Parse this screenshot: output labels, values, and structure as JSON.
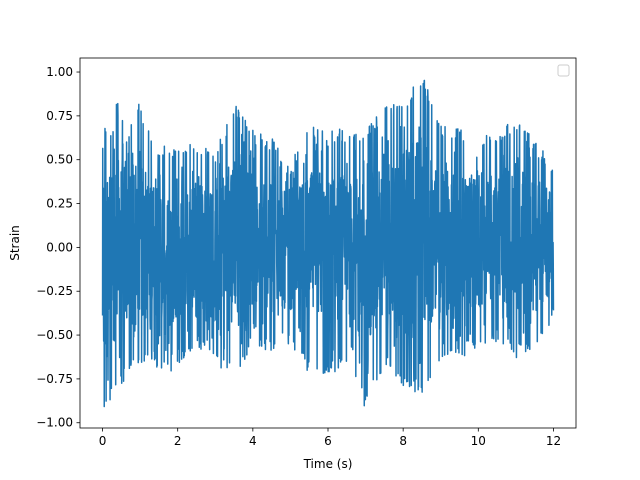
{
  "chart_data": {
    "type": "line",
    "title": "",
    "xlabel": "Time (s)",
    "ylabel": "Strain",
    "xlim": [
      -0.6,
      12.6
    ],
    "ylim": [
      -1.03,
      1.08
    ],
    "x_ticks": [
      0,
      2,
      4,
      6,
      8,
      10,
      12
    ],
    "x_tick_labels": [
      "0",
      "2",
      "4",
      "6",
      "8",
      "10",
      "12"
    ],
    "y_ticks": [
      -1.0,
      -0.75,
      -0.5,
      -0.25,
      0.0,
      0.25,
      0.5,
      0.75,
      1.0
    ],
    "y_tick_labels": [
      "−1.00",
      "−0.75",
      "−0.50",
      "−0.25",
      "0.00",
      "0.25",
      "0.50",
      "0.75",
      "1.00"
    ],
    "grid": false,
    "legend": {
      "placement": "top-right",
      "entries": []
    },
    "series": [
      {
        "color": "#1f77b4",
        "x_range": [
          0,
          12
        ],
        "envelope": {
          "x": [
            0,
            0.5,
            1,
            1.5,
            2,
            2.5,
            3,
            3.5,
            4,
            4.5,
            5,
            5.5,
            6,
            6.5,
            7,
            7.5,
            8,
            8.5,
            9,
            9.5,
            10,
            10.5,
            11,
            11.5,
            12
          ],
          "upper": [
            0.69,
            0.86,
            0.82,
            0.58,
            0.57,
            0.62,
            0.55,
            0.83,
            0.67,
            0.63,
            0.48,
            0.69,
            0.75,
            0.66,
            0.69,
            0.8,
            0.85,
            1.0,
            0.69,
            0.69,
            0.66,
            0.65,
            0.74,
            0.61,
            0.5
          ],
          "lower": [
            -0.93,
            -0.78,
            -0.66,
            -0.72,
            -0.7,
            -0.56,
            -0.67,
            -0.74,
            -0.57,
            -0.59,
            -0.55,
            -0.72,
            -0.72,
            -0.7,
            -0.92,
            -0.67,
            -0.81,
            -0.84,
            -0.69,
            -0.64,
            -0.56,
            -0.54,
            -0.63,
            -0.57,
            -0.45
          ]
        }
      }
    ]
  }
}
